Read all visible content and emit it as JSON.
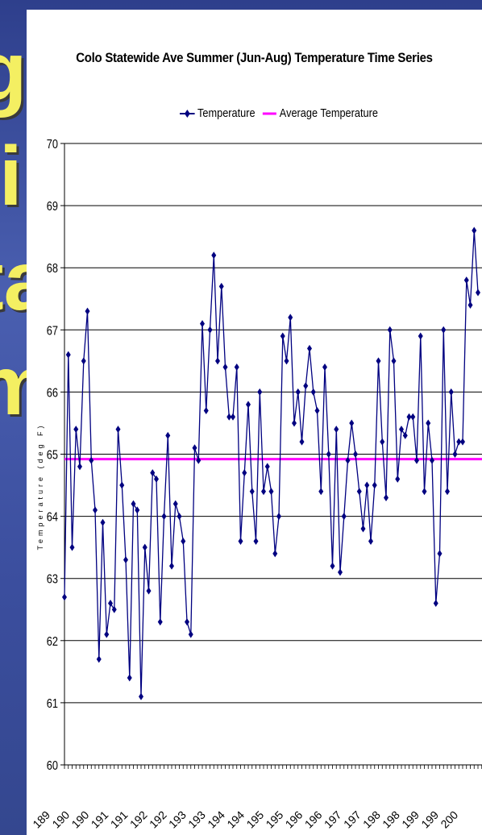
{
  "slide": {
    "background_text_lines": [
      "g",
      "li",
      "ta",
      "m"
    ],
    "text_color": "#f4ef62",
    "background_color": "#3a4fa0"
  },
  "chart_data": {
    "type": "line",
    "title": "Colo Statewide Ave Summer (Jun-Aug) Temperature Time Series",
    "ylabel": "Temperature (deg F)",
    "ylim": [
      60,
      70
    ],
    "yticks": [
      "60",
      "61",
      "62",
      "63",
      "64",
      "65",
      "66",
      "67",
      "68",
      "69",
      "70"
    ],
    "x_ticks_visible": [
      "189",
      "190",
      "190",
      "191",
      "191",
      "192",
      "192",
      "193",
      "193",
      "194",
      "194",
      "195",
      "195",
      "196",
      "196",
      "197",
      "197",
      "198",
      "198",
      "199",
      "199",
      "200"
    ],
    "grid": "horizontal",
    "legend": "top-center",
    "series": [
      {
        "name": "Temperature",
        "color": "#000080",
        "marker": "diamond",
        "values": [
          62.7,
          66.6,
          63.5,
          65.4,
          64.8,
          66.5,
          67.3,
          64.9,
          64.1,
          61.7,
          63.9,
          62.1,
          62.6,
          62.5,
          65.4,
          64.5,
          63.3,
          61.4,
          64.2,
          64.1,
          61.1,
          63.5,
          62.8,
          64.7,
          64.6,
          62.3,
          64.0,
          65.3,
          63.2,
          64.2,
          64.0,
          63.6,
          62.3,
          62.1,
          65.1,
          64.9,
          67.1,
          65.7,
          67.0,
          68.2,
          66.5,
          67.7,
          66.4,
          65.6,
          65.6,
          66.4,
          63.6,
          64.7,
          65.8,
          64.4,
          63.6,
          66.0,
          64.4,
          64.8,
          64.4,
          63.4,
          64.0,
          66.9,
          66.5,
          67.2,
          65.5,
          66.0,
          65.2,
          66.1,
          66.7,
          66.0,
          65.7,
          64.4,
          66.4,
          65.0,
          63.2,
          65.4,
          63.1,
          64.0,
          64.9,
          65.5,
          65.0,
          64.4,
          63.8,
          64.5,
          63.6,
          64.5,
          66.5,
          65.2,
          64.3,
          67.0,
          66.5,
          64.6,
          65.4,
          65.3,
          65.6,
          65.6,
          64.9,
          66.9,
          64.4,
          65.5,
          64.9,
          62.6,
          63.4,
          67.0,
          64.4,
          66.0,
          65.0,
          65.2,
          65.2,
          67.8,
          67.4,
          68.6,
          67.6
        ]
      },
      {
        "name": "Average Temperature",
        "color": "#ff00ff",
        "value": 64.92
      }
    ]
  }
}
